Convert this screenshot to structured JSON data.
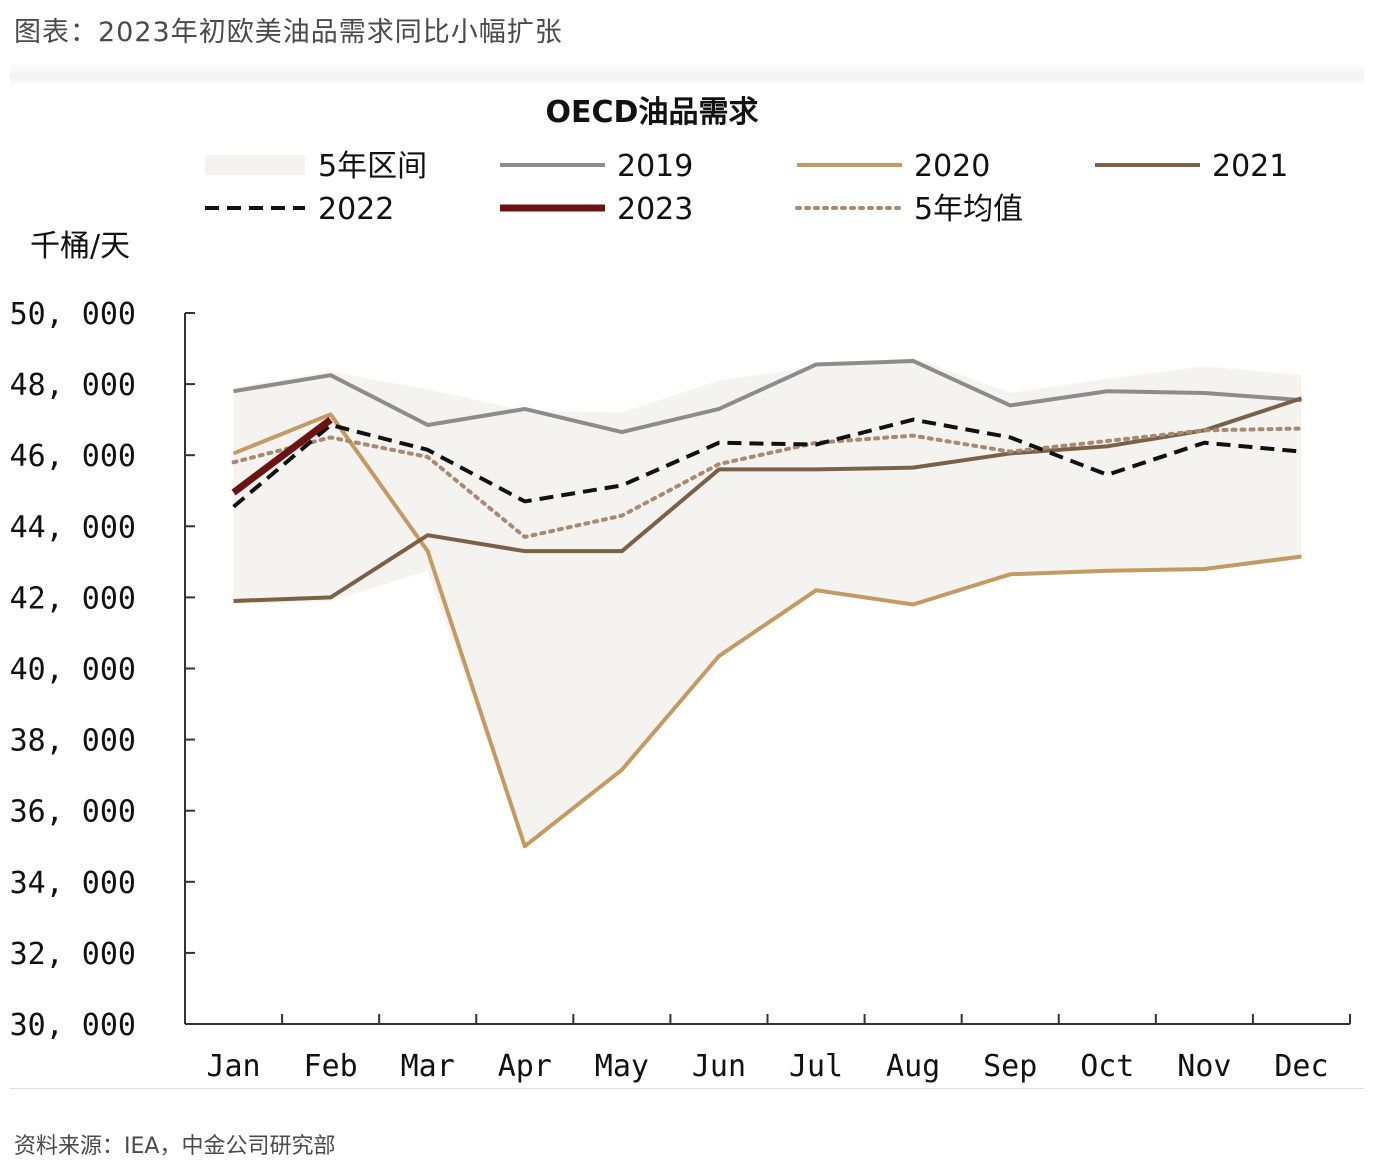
{
  "figure": {
    "caption": "图表：2023年初欧美油品需求同比小幅扩张",
    "source": "资料来源：IEA，中金公司研究部"
  },
  "chart_data": {
    "type": "line",
    "title": "OECD油品需求",
    "ylabel": "千桶/天",
    "ylim": [
      30000,
      50000
    ],
    "yticks": [
      30000,
      32000,
      34000,
      36000,
      38000,
      40000,
      42000,
      44000,
      46000,
      48000,
      50000
    ],
    "ytick_labels": [
      "30, 000",
      "32, 000",
      "34, 000",
      "36, 000",
      "38, 000",
      "40, 000",
      "42, 000",
      "44, 000",
      "46, 000",
      "48, 000",
      "50, 000"
    ],
    "categories": [
      "Jan",
      "Feb",
      "Mar",
      "Apr",
      "May",
      "Jun",
      "Jul",
      "Aug",
      "Sep",
      "Oct",
      "Nov",
      "Dec"
    ],
    "grid": false,
    "legend_position": "top",
    "range_band": {
      "name": "5年区间",
      "color": "#f4f3ef",
      "upper": [
        47900,
        48350,
        47850,
        47250,
        47200,
        48100,
        48500,
        48750,
        47750,
        48150,
        48500,
        48250
      ],
      "lower": [
        41800,
        41900,
        42750,
        34950,
        37200,
        40300,
        42200,
        41800,
        42700,
        42750,
        42800,
        43050
      ]
    },
    "series": [
      {
        "name": "2019",
        "color": "#8c8c8c",
        "style": "solid",
        "width": 4,
        "values": [
          47800,
          48250,
          46850,
          47300,
          46650,
          47300,
          48550,
          48650,
          47400,
          47800,
          47750,
          47550
        ]
      },
      {
        "name": "2020",
        "color": "#c49a64",
        "style": "solid",
        "width": 4,
        "values": [
          46050,
          47150,
          43300,
          35000,
          37150,
          40350,
          42200,
          41800,
          42650,
          42750,
          42800,
          43150
        ]
      },
      {
        "name": "2021",
        "color": "#7a6048",
        "style": "solid",
        "width": 4,
        "values": [
          41900,
          42000,
          43750,
          43300,
          43300,
          45600,
          45600,
          45650,
          46050,
          46250,
          46700,
          47600
        ]
      },
      {
        "name": "2022",
        "color": "#111111",
        "style": "dashed",
        "width": 4,
        "values": [
          44550,
          46850,
          46150,
          44700,
          45150,
          46350,
          46300,
          47000,
          46500,
          45450,
          46350,
          46100
        ]
      },
      {
        "name": "2023",
        "color": "#6b1212",
        "style": "solid",
        "width": 7,
        "values": [
          44950,
          47000,
          null,
          null,
          null,
          null,
          null,
          null,
          null,
          null,
          null,
          null
        ]
      },
      {
        "name": "5年均值",
        "color": "#a88a74",
        "style": "dotted",
        "width": 4,
        "values": [
          45800,
          46500,
          45950,
          43700,
          44300,
          45750,
          46350,
          46550,
          46100,
          46400,
          46700,
          46750
        ]
      }
    ]
  }
}
